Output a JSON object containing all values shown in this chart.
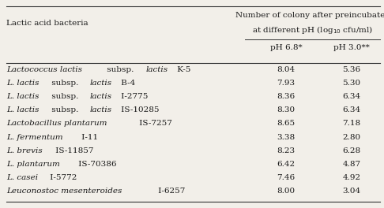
{
  "header_col": "Lactic acid bacteria",
  "header_row1": "Number of colony after preincubated",
  "header_row2": "at different pH (log",
  "header_sub1": "pH 6.8*",
  "header_sub2": "pH 3.0**",
  "rows": [
    [
      "8.04",
      "5.36"
    ],
    [
      "7.93",
      "5.30"
    ],
    [
      "8.36",
      "6.34"
    ],
    [
      "8.30",
      "6.34"
    ],
    [
      "8.65",
      "7.18"
    ],
    [
      "3.38",
      "2.80"
    ],
    [
      "8.23",
      "6.28"
    ],
    [
      "6.42",
      "4.87"
    ],
    [
      "7.46",
      "4.92"
    ],
    [
      "8.00",
      "3.04"
    ]
  ],
  "row_labels": [
    [
      [
        "Lactococcus lactis",
        true
      ],
      [
        " subsp. ",
        false
      ],
      [
        "lactis",
        true
      ],
      [
        " K-5",
        false
      ]
    ],
    [
      [
        "L. lactis",
        true
      ],
      [
        " subsp. ",
        false
      ],
      [
        "lactis",
        true
      ],
      [
        " B-4",
        false
      ]
    ],
    [
      [
        "L. lactis",
        true
      ],
      [
        " subsp. ",
        false
      ],
      [
        "lactis",
        true
      ],
      [
        " I-2775",
        false
      ]
    ],
    [
      [
        "L. lactis",
        true
      ],
      [
        " subsp. ",
        false
      ],
      [
        "lactis",
        true
      ],
      [
        " IS-10285",
        false
      ]
    ],
    [
      [
        "Lactobacillus plantarum",
        true
      ],
      [
        " IS-7257",
        false
      ]
    ],
    [
      [
        "L. fermentum",
        true
      ],
      [
        " I-11",
        false
      ]
    ],
    [
      [
        "L. brevis",
        true
      ],
      [
        " IS-11857",
        false
      ]
    ],
    [
      [
        "L. plantarum",
        true
      ],
      [
        " IS-70386",
        false
      ]
    ],
    [
      [
        "L. casei",
        true
      ],
      [
        " I-5772",
        false
      ]
    ],
    [
      [
        "Leuconostoc mesenteroides",
        true
      ],
      [
        " I-6257",
        false
      ]
    ]
  ],
  "bg_color": "#f2efe9",
  "text_color": "#1a1a1a",
  "line_color": "#333333",
  "font_size": 7.5
}
